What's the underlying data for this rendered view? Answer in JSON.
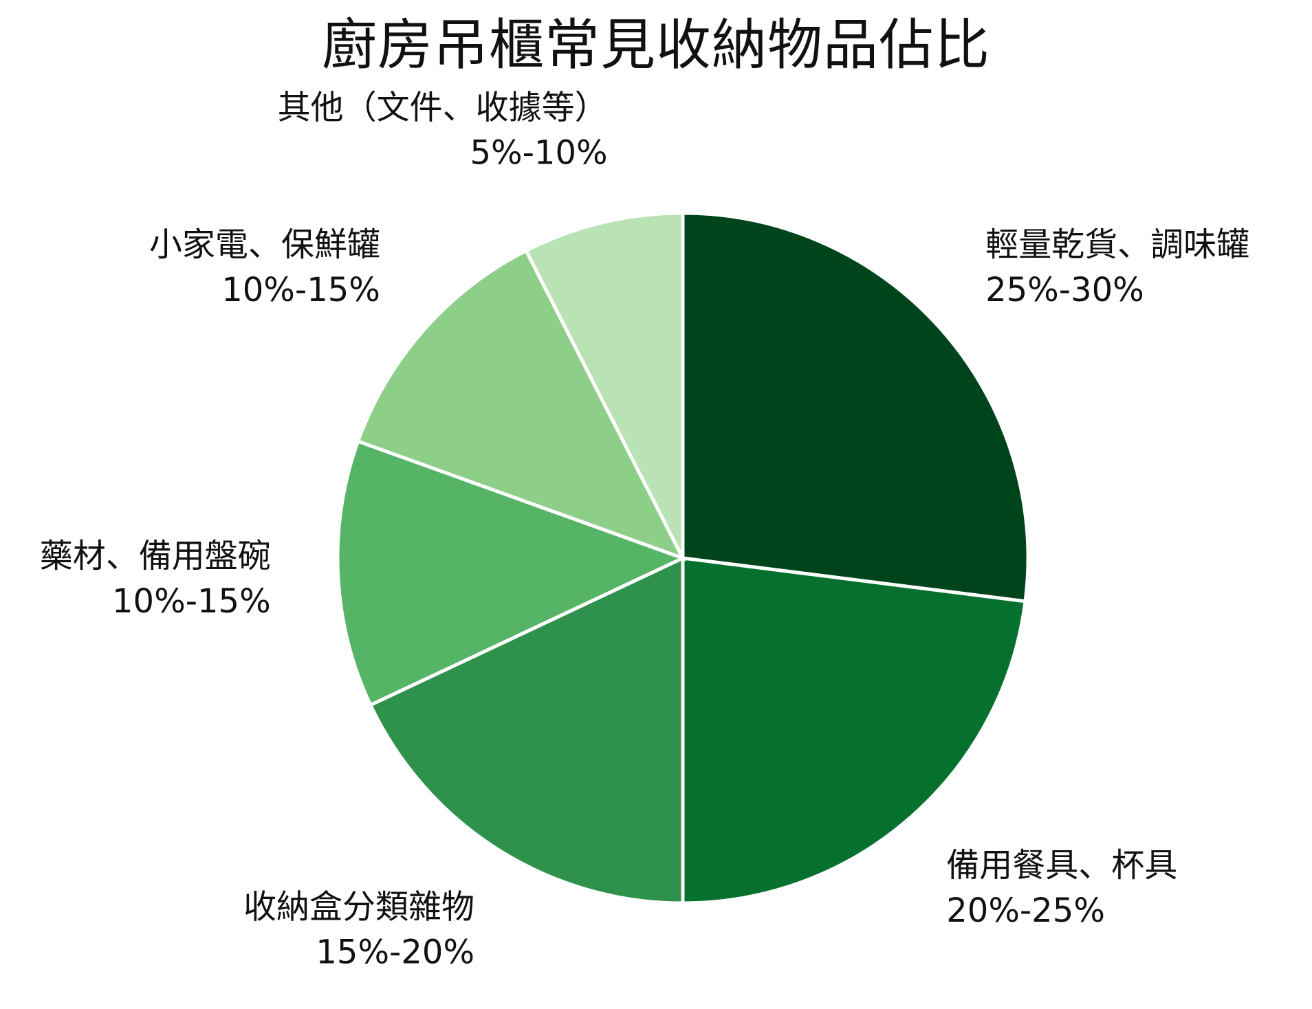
{
  "chart_data": {
    "type": "pie",
    "title": "廚房吊櫃常見收納物品佔比",
    "start_angle_deg": 0,
    "direction": "clockwise",
    "slices": [
      {
        "name": "輕量乾貨、調味罐",
        "label": "25%-30%",
        "value": 27.0,
        "color": "#00441b"
      },
      {
        "name": "備用餐具、杯具",
        "label": "20%-25%",
        "value": 23.0,
        "color": "#06712e"
      },
      {
        "name": "收納盒分類雜物",
        "label": "15%-20%",
        "value": 18.0,
        "color": "#2e924d"
      },
      {
        "name": "藥材、備用盤碗",
        "label": "10%-15%",
        "value": 12.5,
        "color": "#56b467"
      },
      {
        "name": "小家電、保鮮罐",
        "label": "10%-15%",
        "value": 12.0,
        "color": "#8dce88"
      },
      {
        "name": "其他（文件、收據等）",
        "label": "5%-10%",
        "value": 7.5,
        "color": "#b9e3b4"
      }
    ]
  }
}
